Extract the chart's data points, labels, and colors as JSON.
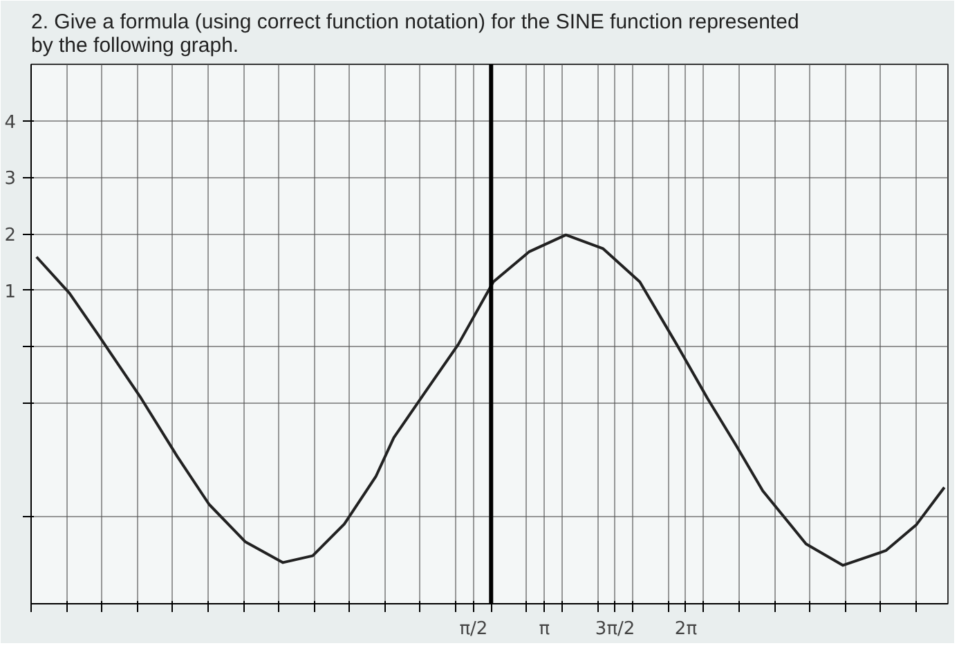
{
  "chart_data": {
    "type": "line",
    "title": "2. Give a formula (using correct function notation) for the SINE function represented by the following graph.",
    "x": [
      -8.13,
      -7.4,
      -6.76,
      -5.81,
      -5.0,
      -4.3,
      -3.5,
      -2.66,
      -2.0,
      -1.3,
      -0.6,
      -0.2,
      0.5,
      1.23,
      2.01,
      2.8,
      3.62,
      4.44,
      5.26,
      6.08,
      6.76,
      7.4,
      7.99,
      8.95,
      9.77,
      10.72,
      11.4,
      12.02
    ],
    "series": [
      {
        "color": "#222222",
        "values": [
          1.59,
          0.95,
          0.21,
          -0.91,
          -1.95,
          -2.79,
          -3.45,
          -3.82,
          -3.7,
          -3.14,
          -2.3,
          -1.61,
          -0.8,
          0.04,
          1.15,
          1.68,
          1.98,
          1.74,
          1.15,
          0.04,
          -0.91,
          -1.75,
          -2.55,
          -3.49,
          -3.87,
          -3.61,
          -3.15,
          -2.49
        ]
      }
    ],
    "xlim": [
      -8.25,
      12.1
    ],
    "ylim": [
      -4.55,
      5
    ],
    "xticks": [
      {
        "value": -8.25,
        "label": null
      },
      {
        "value": -7.46,
        "label": null
      },
      {
        "value": -6.68,
        "label": null
      },
      {
        "value": -5.89,
        "label": null
      },
      {
        "value": -5.11,
        "label": null
      },
      {
        "value": -4.32,
        "label": null
      },
      {
        "value": -3.53,
        "label": null
      },
      {
        "value": -2.75,
        "label": null
      },
      {
        "value": -1.96,
        "label": null
      },
      {
        "value": -1.18,
        "label": null
      },
      {
        "value": -0.39,
        "label": null
      },
      {
        "value": 0.39,
        "label": null
      },
      {
        "value": 1.18,
        "label": null
      },
      {
        "value": 1.571,
        "label": "π/2"
      },
      {
        "value": 1.96,
        "label": null
      },
      {
        "value": 2.75,
        "label": null
      },
      {
        "value": 3.142,
        "label": "π"
      },
      {
        "value": 3.53,
        "label": null
      },
      {
        "value": 4.32,
        "label": null
      },
      {
        "value": 4.712,
        "label": "3π/2"
      },
      {
        "value": 5.11,
        "label": null
      },
      {
        "value": 5.89,
        "label": null
      },
      {
        "value": 6.283,
        "label": "2π"
      },
      {
        "value": 6.68,
        "label": null
      },
      {
        "value": 7.46,
        "label": null
      },
      {
        "value": 8.25,
        "label": null
      },
      {
        "value": 9.03,
        "label": null
      },
      {
        "value": 9.82,
        "label": null
      },
      {
        "value": 10.6,
        "label": null
      },
      {
        "value": 11.39,
        "label": null
      }
    ],
    "yticks": [
      {
        "value": -3,
        "label": null
      },
      {
        "value": -1,
        "label": null
      },
      {
        "value": 0,
        "label": null
      },
      1,
      2,
      3,
      4
    ],
    "ref_lines": [
      {
        "axis": "x",
        "value": 1.96,
        "color": "#000000"
      }
    ],
    "grid": true,
    "marker": "none",
    "line_style": "solid"
  }
}
